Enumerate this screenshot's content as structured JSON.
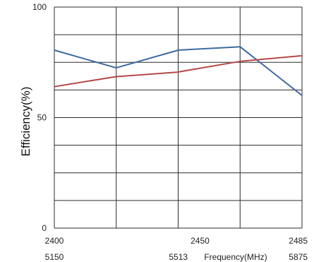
{
  "chart_data": {
    "type": "line",
    "ylabel": "Efficiency(%)",
    "xlabel": "Frequency(MHz)",
    "ylim": [
      0,
      100
    ],
    "y_ticks": [
      "0",
      "50",
      "100"
    ],
    "grid": true,
    "x_axes": [
      {
        "ticks": [
          "2400",
          "2450",
          "2485"
        ],
        "range": [
          2400,
          2485
        ],
        "color": "#e0505a"
      },
      {
        "ticks": [
          "5150",
          "5513",
          "5875"
        ],
        "range": [
          5150,
          5875
        ],
        "color": "#2a8fc4"
      }
    ],
    "series": [
      {
        "color": "#3e6aa3",
        "axis": 1,
        "x": [
          5150,
          5331,
          5513,
          5694,
          5875
        ],
        "y": [
          80.5,
          72.5,
          80.5,
          82,
          60
        ]
      },
      {
        "color": "#b5494a",
        "axis": 0,
        "x": [
          2400,
          2421,
          2442,
          2464,
          2485
        ],
        "y": [
          64,
          68.5,
          70.5,
          75.5,
          78
        ]
      }
    ]
  }
}
